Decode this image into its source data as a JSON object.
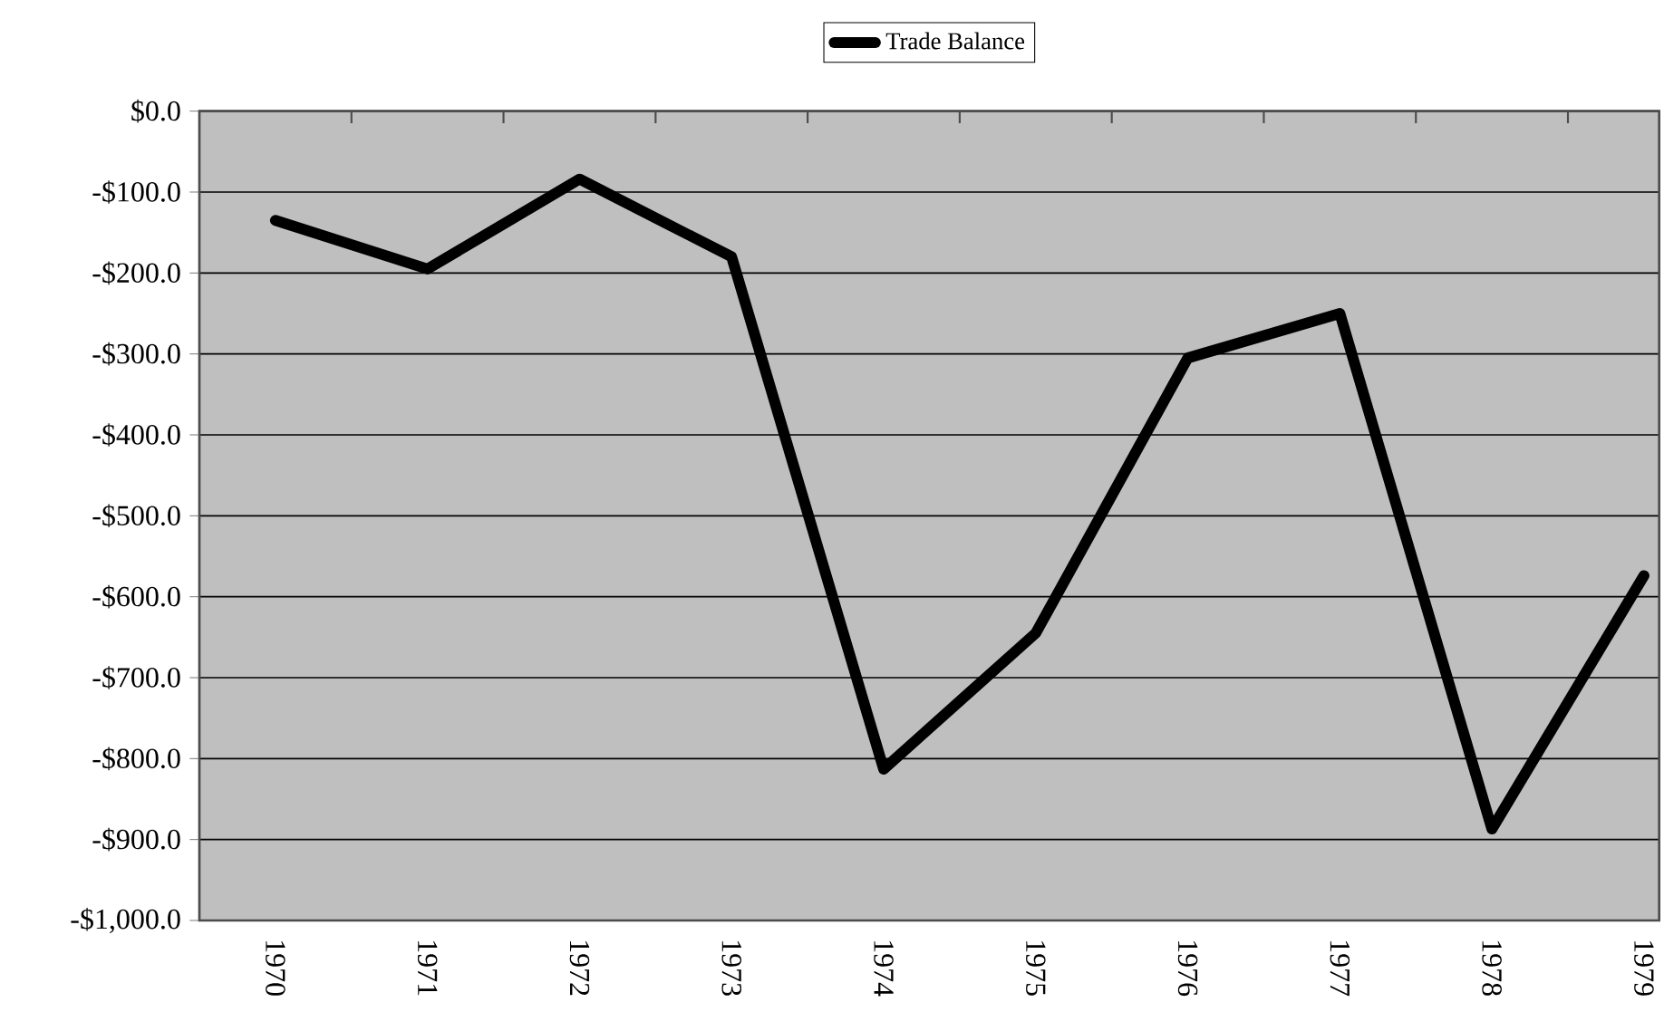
{
  "chart_data": {
    "type": "line",
    "categories": [
      "1970",
      "1971",
      "1972",
      "1973",
      "1974",
      "1975",
      "1976",
      "1977",
      "1978",
      "1979"
    ],
    "series": [
      {
        "name": "Trade Balance",
        "color": "#000000",
        "values": [
          -135,
          -195,
          -84,
          -180,
          -813,
          -645,
          -305,
          -250,
          -887,
          -574
        ]
      }
    ],
    "ylim": [
      -1000,
      0
    ],
    "yticks": [
      {
        "value": 0,
        "label": "$0.0"
      },
      {
        "value": -100,
        "label": "-$100.0"
      },
      {
        "value": -200,
        "label": "-$200.0"
      },
      {
        "value": -300,
        "label": "-$300.0"
      },
      {
        "value": -400,
        "label": "-$400.0"
      },
      {
        "value": -500,
        "label": "-$500.0"
      },
      {
        "value": -600,
        "label": "-$600.0"
      },
      {
        "value": -700,
        "label": "-$700.0"
      },
      {
        "value": -800,
        "label": "-$800.0"
      },
      {
        "value": -900,
        "label": "-$900.0"
      },
      {
        "value": -1000,
        "label": "-$1,000.0"
      }
    ],
    "grid": "y",
    "legend": "top",
    "marker": "none",
    "line_style": "solid"
  }
}
